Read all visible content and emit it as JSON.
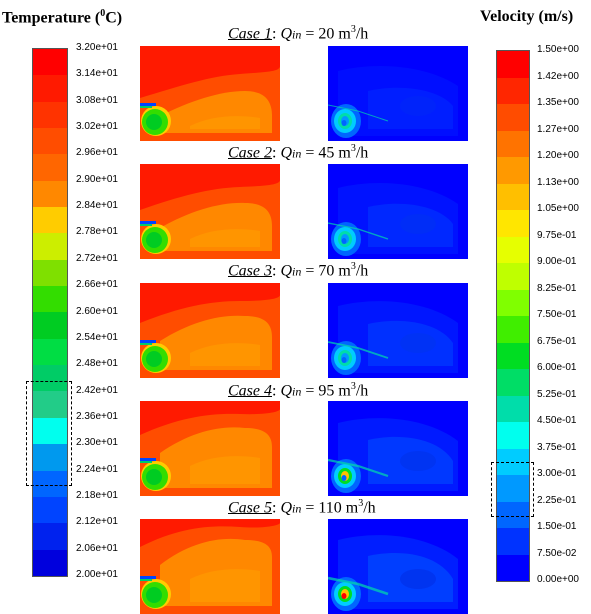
{
  "temperature": {
    "title_text": "Temperature (",
    "title_sup": "0",
    "title_end": "C)",
    "ticks": [
      "3.20e+01",
      "3.14e+01",
      "3.08e+01",
      "3.02e+01",
      "2.96e+01",
      "2.90e+01",
      "2.84e+01",
      "2.78e+01",
      "2.72e+01",
      "2.66e+01",
      "2.60e+01",
      "2.54e+01",
      "2.48e+01",
      "2.42e+01",
      "2.36e+01",
      "2.30e+01",
      "2.24e+01",
      "2.18e+01",
      "2.12e+01",
      "2.06e+01",
      "2.00e+01"
    ],
    "colors": [
      "#ff0000",
      "#ff1a00",
      "#ff3300",
      "#ff4d00",
      "#ff6600",
      "#ff8800",
      "#ffcc00",
      "#ccee00",
      "#7fe000",
      "#33dd00",
      "#00cc22",
      "#00dd44",
      "#00cc66",
      "#22cc88",
      "#00ffee",
      "#0099ee",
      "#0066ff",
      "#0044ff",
      "#0022ee",
      "#0000dd"
    ]
  },
  "velocity": {
    "title_text": "Velocity (m/s)",
    "ticks": [
      "1.50e+00",
      "1.42e+00",
      "1.35e+00",
      "1.27e+00",
      "1.20e+00",
      "1.13e+00",
      "1.05e+00",
      "9.75e-01",
      "9.00e-01",
      "8.25e-01",
      "7.50e-01",
      "6.75e-01",
      "6.00e-01",
      "5.25e-01",
      "4.50e-01",
      "3.75e-01",
      "3.00e-01",
      "2.25e-01",
      "1.50e-01",
      "7.50e-02",
      "0.00e+00"
    ],
    "colors": [
      "#ff0000",
      "#ff2600",
      "#ff4c00",
      "#ff7300",
      "#ff9900",
      "#ffbf00",
      "#ffe600",
      "#e6ff00",
      "#bfff00",
      "#80ff00",
      "#40ee00",
      "#00dd22",
      "#00dd66",
      "#00ddaa",
      "#00ffee",
      "#00ccff",
      "#0099ff",
      "#0066ff",
      "#0033ff",
      "#0000ff"
    ]
  },
  "cases": [
    {
      "name": "Case 1",
      "value": "= 20 m",
      "unit_sup": "3",
      "unit_end": "/h"
    },
    {
      "name": "Case 2",
      "value": "= 45 m",
      "unit_sup": "3",
      "unit_end": "/h"
    },
    {
      "name": "Case 3",
      "value": "= 70 m",
      "unit_sup": "3",
      "unit_end": "/h"
    },
    {
      "name": "Case 4",
      "value": "= 95 m",
      "unit_sup": "3",
      "unit_end": "/h"
    },
    {
      "name": "Case 5",
      "value": "= 110 m",
      "unit_sup": "3",
      "unit_end": "/h"
    }
  ],
  "q_symbol": "Q",
  "q_subscript": "in",
  "colon": ":"
}
